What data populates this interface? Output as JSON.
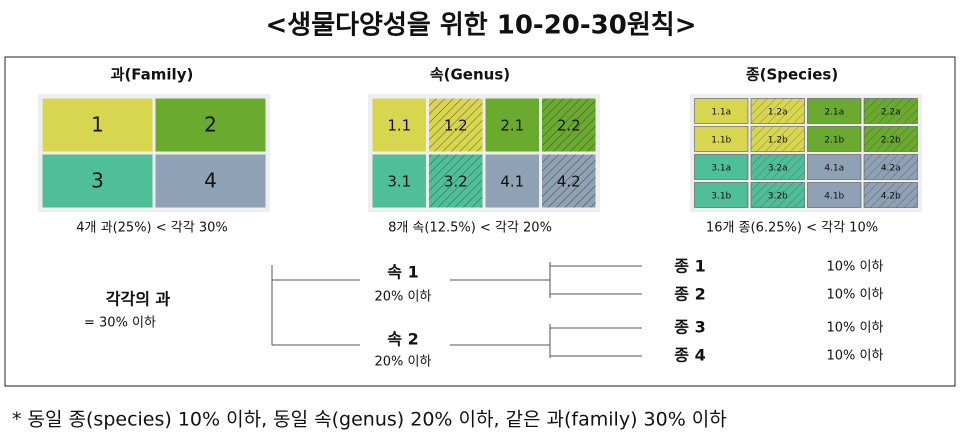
{
  "title": "<생물다양성을 위한 10-20-30원칙>",
  "panels": [
    {
      "heading": "과(Family)",
      "cells": [
        "1",
        "2",
        "3",
        "4"
      ],
      "caption": "4개 과(25%) < 각각 30%"
    },
    {
      "heading": "속(Genus)",
      "cells": [
        "1.1",
        "1.2",
        "2.1",
        "2.2",
        "3.1",
        "3.2",
        "4.1",
        "4.2"
      ],
      "caption": "8개 속(12.5%) < 각각 20%"
    },
    {
      "heading": "종(Species)",
      "cells": [
        "1.1a",
        "1.2a",
        "2.1a",
        "2.2a",
        "1.1b",
        "1.2b",
        "2.1b",
        "2.2b",
        "3.1a",
        "3.2a",
        "4.1a",
        "4.2a",
        "3.1b",
        "3.2b",
        "4.1b",
        "4.2b"
      ],
      "caption": "16개 종(6.25%) < 각각 10%"
    }
  ],
  "tree": {
    "root": {
      "label": "각각의 과",
      "limit": "= 30% 이하"
    },
    "genera": [
      {
        "label": "속 1",
        "limit": "20% 이하",
        "species": [
          {
            "label": "종 1",
            "limit": "10% 이하"
          },
          {
            "label": "종 2",
            "limit": "10% 이하"
          }
        ]
      },
      {
        "label": "속 2",
        "limit": "20% 이하",
        "species": [
          {
            "label": "종 3",
            "limit": "10% 이하"
          },
          {
            "label": "종 4",
            "limit": "10% 이하"
          }
        ]
      }
    ]
  },
  "footnote": "* 동일 종(species) 10% 이하, 동일 속(genus) 20% 이하, 같은 과(family) 30% 이하"
}
